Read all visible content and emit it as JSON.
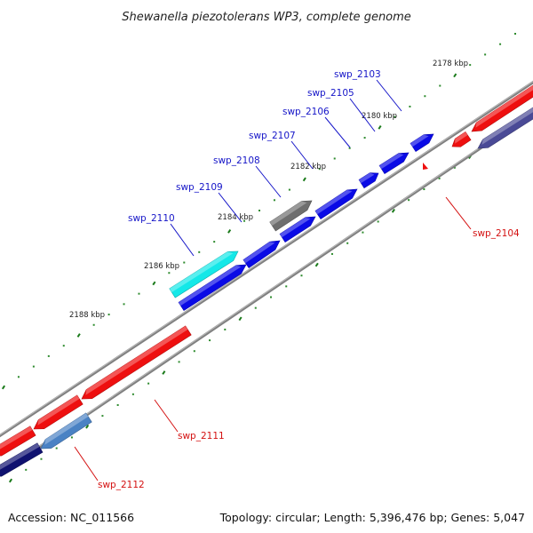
{
  "title": "Shewanella piezotolerans WP3, complete genome",
  "footer": {
    "accession": "Accession: NC_011566",
    "summary": "Topology: circular; Length: 5,396,476 bp; Genes: 5,047"
  },
  "colors": {
    "backbone": "#808080",
    "tick_major": "#1a7a1a",
    "tick_minor": "#2e8b2e",
    "label_forward": "#1515c8",
    "label_reverse": "#d41111",
    "blue": "#0a0ae6",
    "red": "#ee0f0f",
    "gray": "#6e6e6e",
    "cyan": "#14e8e8",
    "navy": "#0f1170",
    "steel": "#4a82c4",
    "slate": "#4a4a96"
  },
  "tick_labels": [
    {
      "text": "2178 kbp"
    },
    {
      "text": "2180 kbp"
    },
    {
      "text": "2182 kbp"
    },
    {
      "text": "2184 kbp"
    },
    {
      "text": "2186 kbp"
    },
    {
      "text": "2188 kbp"
    }
  ],
  "gene_labels": [
    {
      "name": "swp_2103",
      "strand": "forward"
    },
    {
      "name": "swp_2105",
      "strand": "forward"
    },
    {
      "name": "swp_2106",
      "strand": "forward"
    },
    {
      "name": "swp_2107",
      "strand": "forward"
    },
    {
      "name": "swp_2108",
      "strand": "forward"
    },
    {
      "name": "swp_2109",
      "strand": "forward"
    },
    {
      "name": "swp_2110",
      "strand": "forward"
    },
    {
      "name": "swp_2104",
      "strand": "reverse"
    },
    {
      "name": "swp_2111",
      "strand": "reverse"
    },
    {
      "name": "swp_2112",
      "strand": "reverse"
    }
  ]
}
